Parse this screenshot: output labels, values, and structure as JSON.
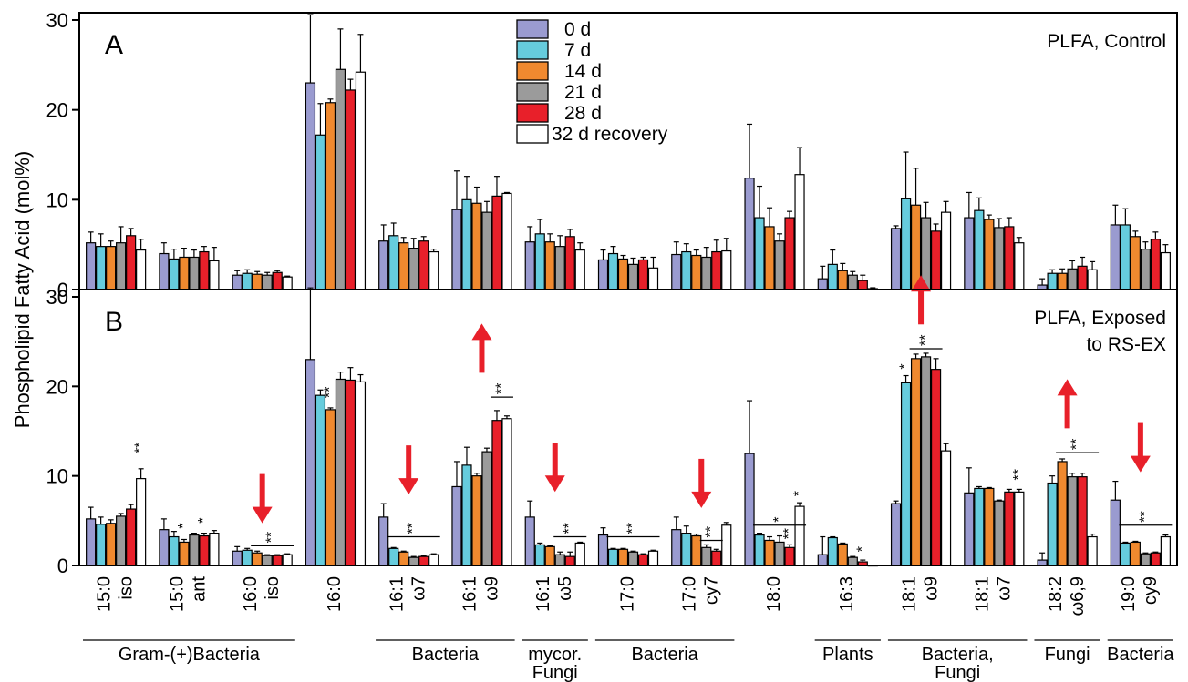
{
  "chart_data": {
    "type": "bar",
    "ylabel": "Phospholipid Fatty Acid (mol%)",
    "ylim": [
      0,
      30
    ],
    "yticks": [
      "0",
      "10",
      "20",
      "30"
    ],
    "colors": [
      "#9a9bd0",
      "#66ccdd",
      "#f0892f",
      "#9b9b9b",
      "#e8202a",
      "#ffffff"
    ],
    "legend": [
      "0 d",
      "7 d",
      "14 d",
      "21 d",
      "28 d",
      "32 d recovery"
    ],
    "categories": [
      [
        "15:0",
        "iso"
      ],
      [
        "15:0",
        "ant"
      ],
      [
        "16:0",
        "iso"
      ],
      [
        "16:0"
      ],
      [
        "16:1",
        "ω7"
      ],
      [
        "16:1",
        "ω9"
      ],
      [
        "16:1",
        "ω5"
      ],
      [
        "17:0"
      ],
      [
        "17:0",
        "cy7"
      ],
      [
        "18:0"
      ],
      [
        "16:3"
      ],
      [
        "18:1",
        "ω9"
      ],
      [
        "18:1",
        "ω7"
      ],
      [
        "18:2",
        "ω6,9"
      ],
      [
        "19:0",
        "cy9"
      ]
    ],
    "groups": [
      {
        "label": [
          "Gram-(+)Bacteria"
        ],
        "from": 0,
        "to": 2
      },
      {
        "label": [
          "Bacteria"
        ],
        "from": 4,
        "to": 5
      },
      {
        "label": [
          "mycor.",
          "Fungi"
        ],
        "from": 6,
        "to": 6
      },
      {
        "label": [
          "Bacteria"
        ],
        "from": 7,
        "to": 8
      },
      {
        "label": [
          "Plants"
        ],
        "from": 10,
        "to": 10
      },
      {
        "label": [
          "Bacteria,",
          "Fungi"
        ],
        "from": 11,
        "to": 12
      },
      {
        "label": [
          "Fungi"
        ],
        "from": 13,
        "to": 13
      },
      {
        "label": [
          "Bacteria"
        ],
        "from": 14,
        "to": 14
      }
    ],
    "panels": [
      {
        "letter": "A",
        "title": [
          "PLFA, Control"
        ],
        "values": [
          [
            5.2,
            4.8,
            4.8,
            5.2,
            6.0,
            4.4
          ],
          [
            4.0,
            3.4,
            3.6,
            3.6,
            4.2,
            3.2
          ],
          [
            1.6,
            1.8,
            1.7,
            1.6,
            1.9,
            1.4
          ],
          [
            23.0,
            17.2,
            20.8,
            24.5,
            22.2,
            24.2
          ],
          [
            5.4,
            6.0,
            5.2,
            4.6,
            5.4,
            4.2
          ],
          [
            8.9,
            10.0,
            9.6,
            8.6,
            10.4,
            10.7
          ],
          [
            5.3,
            6.2,
            5.3,
            4.8,
            5.9,
            4.4
          ],
          [
            3.3,
            4.0,
            3.4,
            2.8,
            3.3,
            2.4
          ],
          [
            3.9,
            4.2,
            3.8,
            3.6,
            4.2,
            4.3
          ],
          [
            12.4,
            8.0,
            7.0,
            5.4,
            8.0,
            12.8
          ],
          [
            1.2,
            2.8,
            2.1,
            1.6,
            1.0,
            0.1
          ],
          [
            6.8,
            10.1,
            9.4,
            8.0,
            6.5,
            8.6
          ],
          [
            8.0,
            8.8,
            7.8,
            6.9,
            7.0,
            5.2
          ],
          [
            0.5,
            1.8,
            1.8,
            2.3,
            2.6,
            2.2
          ],
          [
            7.2,
            7.2,
            5.9,
            4.5,
            5.6,
            4.1
          ]
        ],
        "errors": [
          [
            1.2,
            1.4,
            0.6,
            1.8,
            0.8,
            1.2
          ],
          [
            1.2,
            1.1,
            1.0,
            0.8,
            0.6,
            1.5
          ],
          [
            0.5,
            0.4,
            0.3,
            0.3,
            0.2,
            0.1
          ],
          [
            7.6,
            3.5,
            0.4,
            4.5,
            1.2,
            4.2
          ],
          [
            1.8,
            1.4,
            0.6,
            1.1,
            0.5,
            0.3
          ],
          [
            4.3,
            2.6,
            1.8,
            1.2,
            2.2,
            0.1
          ],
          [
            1.7,
            1.6,
            0.9,
            1.2,
            0.8,
            0.8
          ],
          [
            1.1,
            0.8,
            0.4,
            0.7,
            0.3,
            1.2
          ],
          [
            1.4,
            0.9,
            0.6,
            1.1,
            1.3,
            1.4
          ],
          [
            6.0,
            3.5,
            2.1,
            0.8,
            0.7,
            3.0
          ],
          [
            1.4,
            1.6,
            0.8,
            0.4,
            0.6,
            0.1
          ],
          [
            0.3,
            5.2,
            4.1,
            1.7,
            0.8,
            1.2
          ],
          [
            2.8,
            1.4,
            0.5,
            1.0,
            1.0,
            0.6
          ],
          [
            0.7,
            0.4,
            0.5,
            0.9,
            1.0,
            0.9
          ],
          [
            2.2,
            1.8,
            0.6,
            0.8,
            0.8,
            0.9
          ]
        ],
        "marks": [],
        "arrows": []
      },
      {
        "letter": "B",
        "title": [
          "PLFA, Exposed",
          "to RS-EX"
        ],
        "values": [
          [
            5.2,
            4.6,
            4.7,
            5.5,
            6.3,
            9.7
          ],
          [
            4.0,
            3.2,
            2.6,
            3.4,
            3.3,
            3.6
          ],
          [
            1.6,
            1.7,
            1.4,
            1.1,
            1.1,
            1.2
          ],
          [
            23.0,
            19.0,
            17.4,
            20.8,
            20.7,
            20.5
          ],
          [
            5.4,
            1.9,
            1.5,
            0.9,
            1.0,
            1.2
          ],
          [
            8.8,
            11.2,
            10.0,
            12.7,
            16.2,
            16.4
          ],
          [
            5.4,
            2.3,
            2.1,
            1.2,
            1.0,
            2.5
          ],
          [
            3.4,
            1.8,
            1.8,
            1.5,
            1.2,
            1.6
          ],
          [
            4.0,
            3.6,
            3.3,
            2.0,
            1.6,
            4.5
          ],
          [
            12.5,
            3.4,
            2.8,
            2.6,
            2.0,
            6.6
          ],
          [
            1.2,
            3.1,
            2.4,
            0.9,
            0.4,
            0.0
          ],
          [
            6.9,
            20.4,
            23.1,
            23.3,
            21.9,
            12.8
          ],
          [
            8.1,
            8.6,
            8.6,
            7.2,
            8.2,
            8.2
          ],
          [
            0.6,
            9.2,
            11.6,
            9.9,
            9.9,
            3.2
          ],
          [
            7.3,
            2.5,
            2.6,
            1.3,
            1.4,
            3.2
          ]
        ],
        "errors": [
          [
            1.3,
            0.8,
            0.4,
            0.3,
            0.5,
            1.1
          ],
          [
            1.2,
            0.6,
            0.3,
            0.2,
            0.3,
            0.3
          ],
          [
            0.5,
            0.2,
            0.2,
            0.1,
            0.1,
            0.1
          ],
          [
            8.0,
            0.6,
            0.2,
            0.8,
            1.4,
            0.8
          ],
          [
            1.5,
            0.1,
            0.1,
            0.1,
            0.1,
            0.1
          ],
          [
            2.8,
            2.0,
            0.3,
            0.4,
            1.1,
            0.3
          ],
          [
            1.8,
            0.2,
            0.1,
            0.3,
            0.5,
            0.1
          ],
          [
            0.8,
            0.1,
            0.1,
            0.1,
            0.1,
            0.1
          ],
          [
            1.4,
            0.8,
            0.2,
            0.3,
            0.2,
            0.3
          ],
          [
            5.9,
            0.2,
            0.4,
            0.7,
            0.3,
            0.4
          ],
          [
            2.0,
            0.1,
            0.1,
            0.1,
            0.2,
            0.0
          ],
          [
            0.3,
            0.8,
            0.5,
            0.4,
            1.2,
            0.8
          ],
          [
            2.8,
            0.2,
            0.1,
            0.1,
            0.3,
            0.3
          ],
          [
            0.8,
            0.8,
            0.3,
            0.4,
            0.4,
            0.3
          ],
          [
            2.1,
            0.1,
            0.1,
            0.1,
            0.1,
            0.2
          ]
        ],
        "marks": [
          {
            "cat": 0,
            "text": "**",
            "bars": [
              5,
              5
            ],
            "y": 12.2
          },
          {
            "cat": 1,
            "text": "*",
            "bars": [
              2,
              2
            ],
            "y": 3.8
          },
          {
            "cat": 1,
            "text": "*",
            "bars": [
              4,
              4
            ],
            "y": 4.4
          },
          {
            "cat": 2,
            "text": "**",
            "bars": [
              2,
              5
            ],
            "y": 2.2
          },
          {
            "cat": 3,
            "text": "**",
            "bars": [
              2,
              2
            ],
            "y": 18.4
          },
          {
            "cat": 4,
            "text": "**",
            "bars": [
              1,
              5
            ],
            "y": 3.2
          },
          {
            "cat": 5,
            "text": "**",
            "bars": [
              4,
              5
            ],
            "y": 18.8
          },
          {
            "cat": 6,
            "text": "**",
            "bars": [
              3,
              5
            ],
            "y": 3.2
          },
          {
            "cat": 7,
            "text": "**",
            "bars": [
              1,
              5
            ],
            "y": 3.2
          },
          {
            "cat": 8,
            "text": "**",
            "bars": [
              3,
              4
            ],
            "y": 2.8
          },
          {
            "cat": 9,
            "text": "*",
            "bars": [
              1,
              5
            ],
            "y": 4.5
          },
          {
            "cat": 9,
            "text": "**",
            "bars": [
              4,
              4
            ],
            "y": 2.6
          },
          {
            "cat": 9,
            "text": "*",
            "bars": [
              5,
              5
            ],
            "y": 7.4
          },
          {
            "cat": 10,
            "text": "*",
            "bars": [
              4,
              4
            ],
            "y": 1.2
          },
          {
            "cat": 11,
            "text": "*",
            "bars": [
              1,
              1
            ],
            "y": 21.6
          },
          {
            "cat": 11,
            "text": "**",
            "bars": [
              2,
              4
            ],
            "y": 24.2
          },
          {
            "cat": 12,
            "text": "**",
            "bars": [
              5,
              5
            ],
            "y": 9.2
          },
          {
            "cat": 13,
            "text": "**",
            "bars": [
              2,
              5
            ],
            "y": 12.6
          },
          {
            "cat": 14,
            "text": "**",
            "bars": [
              1,
              5
            ],
            "y": 4.5
          }
        ],
        "arrows": [
          {
            "cat": 2,
            "dir": "down"
          },
          {
            "cat": 4,
            "dir": "down"
          },
          {
            "cat": 5,
            "dir": "up"
          },
          {
            "cat": 6,
            "dir": "down"
          },
          {
            "cat": 8,
            "dir": "down"
          },
          {
            "cat": 11,
            "dir": "up"
          },
          {
            "cat": 13,
            "dir": "up"
          },
          {
            "cat": 14,
            "dir": "down"
          }
        ]
      }
    ]
  }
}
